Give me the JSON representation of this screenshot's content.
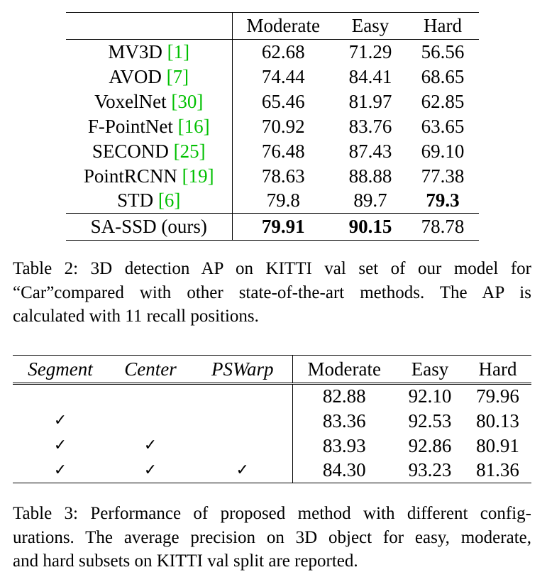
{
  "table2": {
    "columns": [
      "",
      "Moderate",
      "Easy",
      "Hard"
    ],
    "rows": [
      {
        "method": "MV3D ",
        "ref": "[1]",
        "moderate": "62.68",
        "easy": "71.29",
        "hard": "56.56"
      },
      {
        "method": "AVOD ",
        "ref": "[7]",
        "moderate": "74.44",
        "easy": "84.41",
        "hard": "68.65"
      },
      {
        "method": "VoxelNet ",
        "ref": "[30]",
        "moderate": "65.46",
        "easy": "81.97",
        "hard": "62.85"
      },
      {
        "method": "F-PointNet ",
        "ref": "[16]",
        "moderate": "70.92",
        "easy": "83.76",
        "hard": "63.65"
      },
      {
        "method": "SECOND ",
        "ref": "[25]",
        "moderate": "76.48",
        "easy": "87.43",
        "hard": "69.10"
      },
      {
        "method": "PointRCNN ",
        "ref": "[19]",
        "moderate": "78.63",
        "easy": "88.88",
        "hard": "77.38"
      },
      {
        "method": "STD ",
        "ref": "[6]",
        "moderate": "79.8",
        "easy": "89.7",
        "hard": "79.3"
      }
    ],
    "ours": {
      "method": "SA-SSD (ours)",
      "moderate": "79.91",
      "easy": "90.15",
      "hard": "78.78"
    },
    "caption_lines": [
      "Table 2: 3D detection AP on KITTI val set of our model for",
      "“Car”compared with other state-of-the-art methods. The AP is",
      "calculated with 11 recall positions."
    ]
  },
  "table3": {
    "columns": [
      "Segment",
      "Center",
      "PSWarp",
      "Moderate",
      "Easy",
      "Hard"
    ],
    "check_mark": "✓",
    "rows": [
      {
        "segment": "",
        "center": "",
        "pswarp": "",
        "moderate": "82.88",
        "easy": "92.10",
        "hard": "79.96"
      },
      {
        "segment": "✓",
        "center": "",
        "pswarp": "",
        "moderate": "83.36",
        "easy": "92.53",
        "hard": "80.13"
      },
      {
        "segment": "✓",
        "center": "✓",
        "pswarp": "",
        "moderate": "83.93",
        "easy": "92.86",
        "hard": "80.91"
      },
      {
        "segment": "✓",
        "center": "✓",
        "pswarp": "✓",
        "moderate": "84.30",
        "easy": "93.23",
        "hard": "81.36"
      }
    ],
    "caption_lines": [
      "Table 3: Performance of proposed method with different config-",
      "urations. The average precision on 3D object for easy, moderate,",
      "and hard subsets on KITTI val split are reported."
    ]
  },
  "colors": {
    "citation": "#00c000",
    "text": "#000000",
    "background": "#ffffff"
  }
}
